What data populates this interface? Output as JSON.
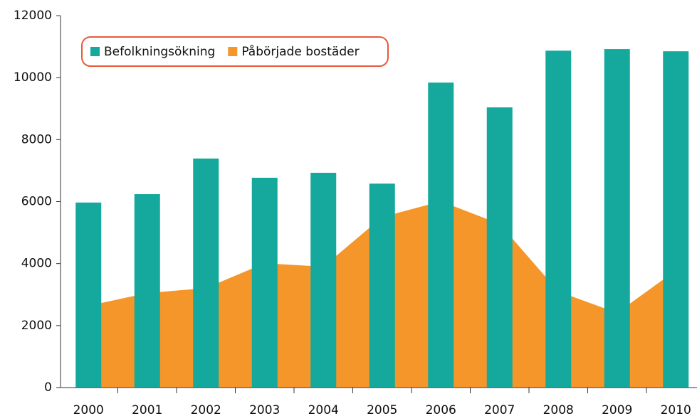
{
  "chart_data": {
    "type": "bar",
    "categories": [
      "2000",
      "2001",
      "2002",
      "2003",
      "2004",
      "2005",
      "2006",
      "2007",
      "2008",
      "2009",
      "2010"
    ],
    "series": [
      {
        "name": "Befolkningsökning",
        "color": "#15a89c",
        "type": "bar",
        "values": [
          5970,
          6240,
          7390,
          6770,
          6930,
          6580,
          9840,
          9040,
          10870,
          10920,
          10850
        ]
      },
      {
        "name": "Påbörjade bostäder",
        "color": "#f5962a",
        "type": "area",
        "values": [
          2640,
          3050,
          3210,
          4010,
          3900,
          5500,
          6010,
          5280,
          3100,
          2410,
          3780
        ]
      }
    ],
    "ylim": [
      0,
      12000
    ],
    "yticks": [
      0,
      2000,
      4000,
      6000,
      8000,
      10000,
      12000
    ],
    "grid": false,
    "legend": "top-left"
  }
}
